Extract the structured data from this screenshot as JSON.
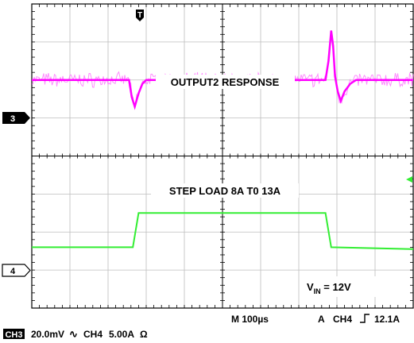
{
  "chart_data": {
    "type": "line",
    "title": "",
    "grid": true,
    "x_axis": {
      "label": "M 100µs",
      "divisions": 10,
      "units_per_division": "100µs"
    },
    "y_axis": {
      "divisions": 8
    },
    "annotations": {
      "output_label": "OUTPUT2 RESPONSE",
      "load_label": "STEP LOAD 8A T0 13A",
      "vin_prefix": "V",
      "vin_subscript": "IN",
      "vin_value": " = 12V"
    },
    "channels": [
      {
        "name": "CH3",
        "marker": "3",
        "color": "#ff00ff",
        "scale": "20.0mV",
        "coupling_symbol": "∿",
        "ground_level_div": 2.0,
        "x_div": [
          0,
          2.55,
          2.62,
          2.7,
          2.8,
          2.9,
          3.0,
          7.7,
          7.78,
          7.85,
          7.9,
          7.95,
          8.02,
          8.1,
          8.2,
          8.35,
          8.5,
          10
        ],
        "y_div": [
          0,
          0,
          -0.45,
          -0.7,
          -0.35,
          -0.1,
          0,
          0,
          0.5,
          1.3,
          0.9,
          0.1,
          -0.3,
          -0.55,
          -0.3,
          -0.1,
          0,
          0
        ]
      },
      {
        "name": "CH4",
        "marker": "4",
        "color": "#33ee33",
        "scale": "5.00A",
        "coupling_symbol": "Ω",
        "ground_level_div": -3.95,
        "x_div": [
          0,
          2.65,
          2.8,
          7.7,
          7.85,
          10
        ],
        "y_div": [
          1.55,
          1.55,
          2.45,
          2.45,
          1.55,
          1.5
        ]
      }
    ],
    "trigger": {
      "label": "A",
      "source": "CH4",
      "slope": "rising",
      "level": "12.1A"
    }
  }
}
